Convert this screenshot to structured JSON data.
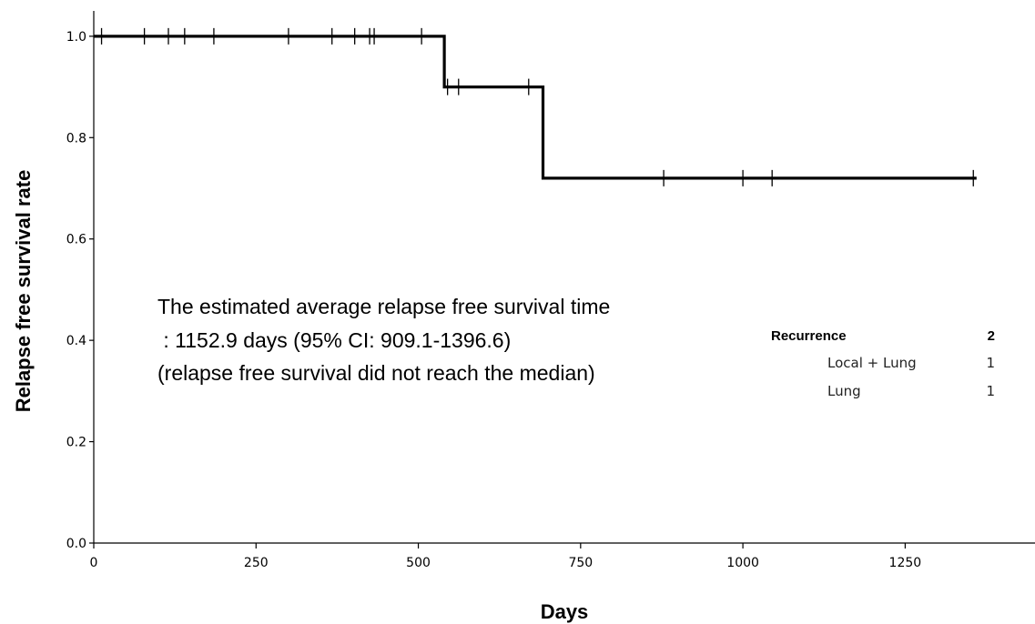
{
  "chart_data": {
    "type": "line",
    "subtype": "kaplan-meier step",
    "xlabel": "Days",
    "ylabel": "Relapse free survival rate",
    "xlim": [
      0,
      1450
    ],
    "ylim": [
      0,
      1.05
    ],
    "x_ticks": [
      "0",
      "250",
      "500",
      "750",
      "1000",
      "1250"
    ],
    "y_ticks": [
      "0.0",
      "0.2",
      "0.4",
      "0.6",
      "0.8",
      "1.0"
    ],
    "grid": false,
    "series": [
      {
        "steps": [
          {
            "x": 0,
            "y": 1.0
          },
          {
            "x": 540,
            "y": 1.0
          },
          {
            "x": 540,
            "y": 0.9
          },
          {
            "x": 692,
            "y": 0.9
          },
          {
            "x": 692,
            "y": 0.72
          },
          {
            "x": 1360,
            "y": 0.72
          }
        ],
        "censored": [
          {
            "x": 12,
            "y": 1.0
          },
          {
            "x": 78,
            "y": 1.0
          },
          {
            "x": 115,
            "y": 1.0
          },
          {
            "x": 140,
            "y": 1.0
          },
          {
            "x": 185,
            "y": 1.0
          },
          {
            "x": 300,
            "y": 1.0
          },
          {
            "x": 367,
            "y": 1.0
          },
          {
            "x": 402,
            "y": 1.0
          },
          {
            "x": 425,
            "y": 1.0
          },
          {
            "x": 432,
            "y": 1.0
          },
          {
            "x": 505,
            "y": 1.0
          },
          {
            "x": 545,
            "y": 0.9
          },
          {
            "x": 562,
            "y": 0.9
          },
          {
            "x": 670,
            "y": 0.9
          },
          {
            "x": 878,
            "y": 0.72
          },
          {
            "x": 1000,
            "y": 0.72
          },
          {
            "x": 1045,
            "y": 0.72
          },
          {
            "x": 1355,
            "y": 0.72
          }
        ]
      }
    ],
    "annotations": [
      "The estimated average relapse free survival time",
      " : 1152.9 days (95% CI: 909.1-1396.6)",
      "(relapse free survival did not reach the median)"
    ],
    "recurrence_table": {
      "header_label": "Recurrence",
      "header_count": "2",
      "rows": [
        {
          "label": "Local + Lung",
          "count": "1"
        },
        {
          "label": "Lung",
          "count": "1"
        }
      ]
    }
  }
}
